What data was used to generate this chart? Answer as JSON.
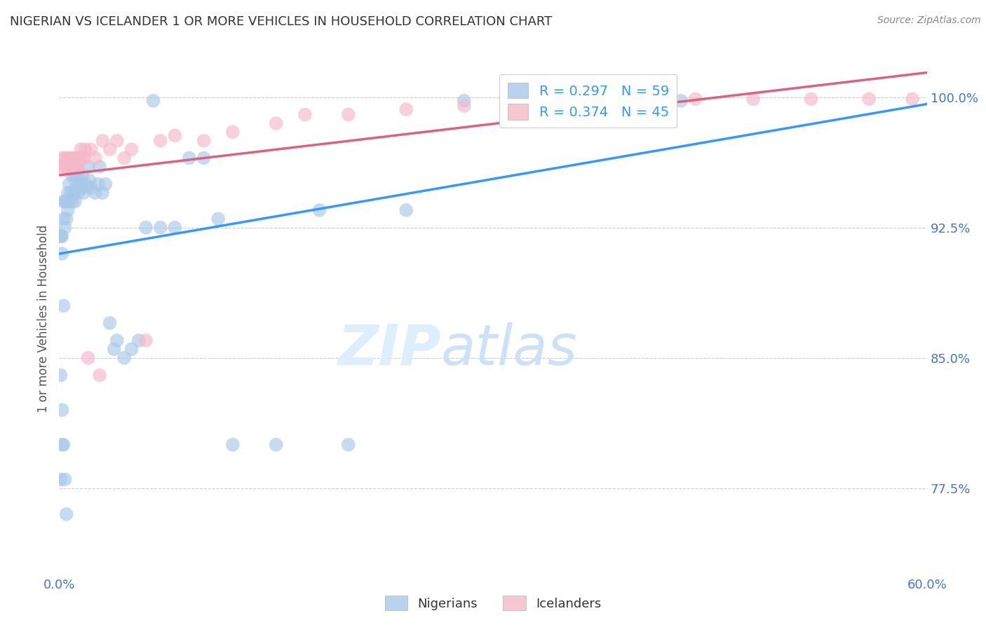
{
  "title": "NIGERIAN VS ICELANDER 1 OR MORE VEHICLES IN HOUSEHOLD CORRELATION CHART",
  "source": "Source: ZipAtlas.com",
  "ylabel": "1 or more Vehicles in Household",
  "ytick_labels": [
    "77.5%",
    "85.0%",
    "92.5%",
    "100.0%"
  ],
  "ytick_values": [
    0.775,
    0.85,
    0.925,
    1.0
  ],
  "xlim": [
    0.0,
    0.6
  ],
  "ylim": [
    0.725,
    1.02
  ],
  "legend_blue_text": "R = 0.297   N = 59",
  "legend_pink_text": "R = 0.374   N = 45",
  "blue_color": "#a8c8e8",
  "pink_color": "#f4b8c8",
  "blue_line_color": "#3399ff",
  "pink_line_color": "#e06080",
  "title_color": "#333333",
  "axis_color": "#4477cc",
  "watermark_color": "#ddeeff",
  "nigerians_x": [
    0.001,
    0.002,
    0.003,
    0.003,
    0.004,
    0.004,
    0.005,
    0.005,
    0.006,
    0.006,
    0.007,
    0.007,
    0.008,
    0.009,
    0.009,
    0.01,
    0.01,
    0.011,
    0.011,
    0.012,
    0.012,
    0.013,
    0.013,
    0.014,
    0.015,
    0.016,
    0.017,
    0.018,
    0.019,
    0.02,
    0.021,
    0.022,
    0.025,
    0.027,
    0.028,
    0.03,
    0.032,
    0.035,
    0.038,
    0.04,
    0.045,
    0.05,
    0.055,
    0.06,
    0.065,
    0.07,
    0.08,
    0.09,
    0.1,
    0.11,
    0.12,
    0.15,
    0.18,
    0.2,
    0.24,
    0.28,
    0.32,
    0.38,
    0.43
  ],
  "nigerians_y": [
    0.92,
    0.91,
    0.93,
    0.94,
    0.925,
    0.94,
    0.93,
    0.94,
    0.935,
    0.945,
    0.94,
    0.95,
    0.945,
    0.94,
    0.955,
    0.945,
    0.96,
    0.94,
    0.955,
    0.95,
    0.96,
    0.945,
    0.955,
    0.95,
    0.948,
    0.955,
    0.945,
    0.95,
    0.948,
    0.96,
    0.952,
    0.948,
    0.945,
    0.95,
    0.96,
    0.945,
    0.95,
    0.87,
    0.855,
    0.86,
    0.85,
    0.855,
    0.86,
    0.925,
    0.998,
    0.925,
    0.925,
    0.965,
    0.965,
    0.93,
    0.8,
    0.8,
    0.935,
    0.8,
    0.935,
    0.998,
    0.998,
    0.998,
    0.998
  ],
  "nigerians_x_low": [
    0.001,
    0.002,
    0.003,
    0.004,
    0.005,
    0.001,
    0.002,
    0.001,
    0.002,
    0.003
  ],
  "nigerians_y_low": [
    0.84,
    0.82,
    0.8,
    0.78,
    0.76,
    0.78,
    0.8,
    0.92,
    0.92,
    0.88
  ],
  "icelanders_x": [
    0.001,
    0.002,
    0.003,
    0.004,
    0.005,
    0.006,
    0.007,
    0.008,
    0.009,
    0.01,
    0.011,
    0.012,
    0.013,
    0.014,
    0.015,
    0.016,
    0.017,
    0.018,
    0.02,
    0.022,
    0.025,
    0.028,
    0.03,
    0.035,
    0.04,
    0.045,
    0.05,
    0.06,
    0.07,
    0.08,
    0.1,
    0.12,
    0.15,
    0.17,
    0.2,
    0.24,
    0.28,
    0.32,
    0.36,
    0.4,
    0.44,
    0.48,
    0.52,
    0.56,
    0.59
  ],
  "icelanders_y": [
    0.96,
    0.965,
    0.96,
    0.965,
    0.96,
    0.965,
    0.96,
    0.965,
    0.96,
    0.965,
    0.96,
    0.965,
    0.96,
    0.965,
    0.97,
    0.965,
    0.965,
    0.97,
    0.85,
    0.97,
    0.965,
    0.84,
    0.975,
    0.97,
    0.975,
    0.965,
    0.97,
    0.86,
    0.975,
    0.978,
    0.975,
    0.98,
    0.985,
    0.99,
    0.99,
    0.993,
    0.995,
    0.997,
    0.998,
    0.998,
    0.999,
    0.999,
    0.999,
    0.999,
    0.999
  ]
}
